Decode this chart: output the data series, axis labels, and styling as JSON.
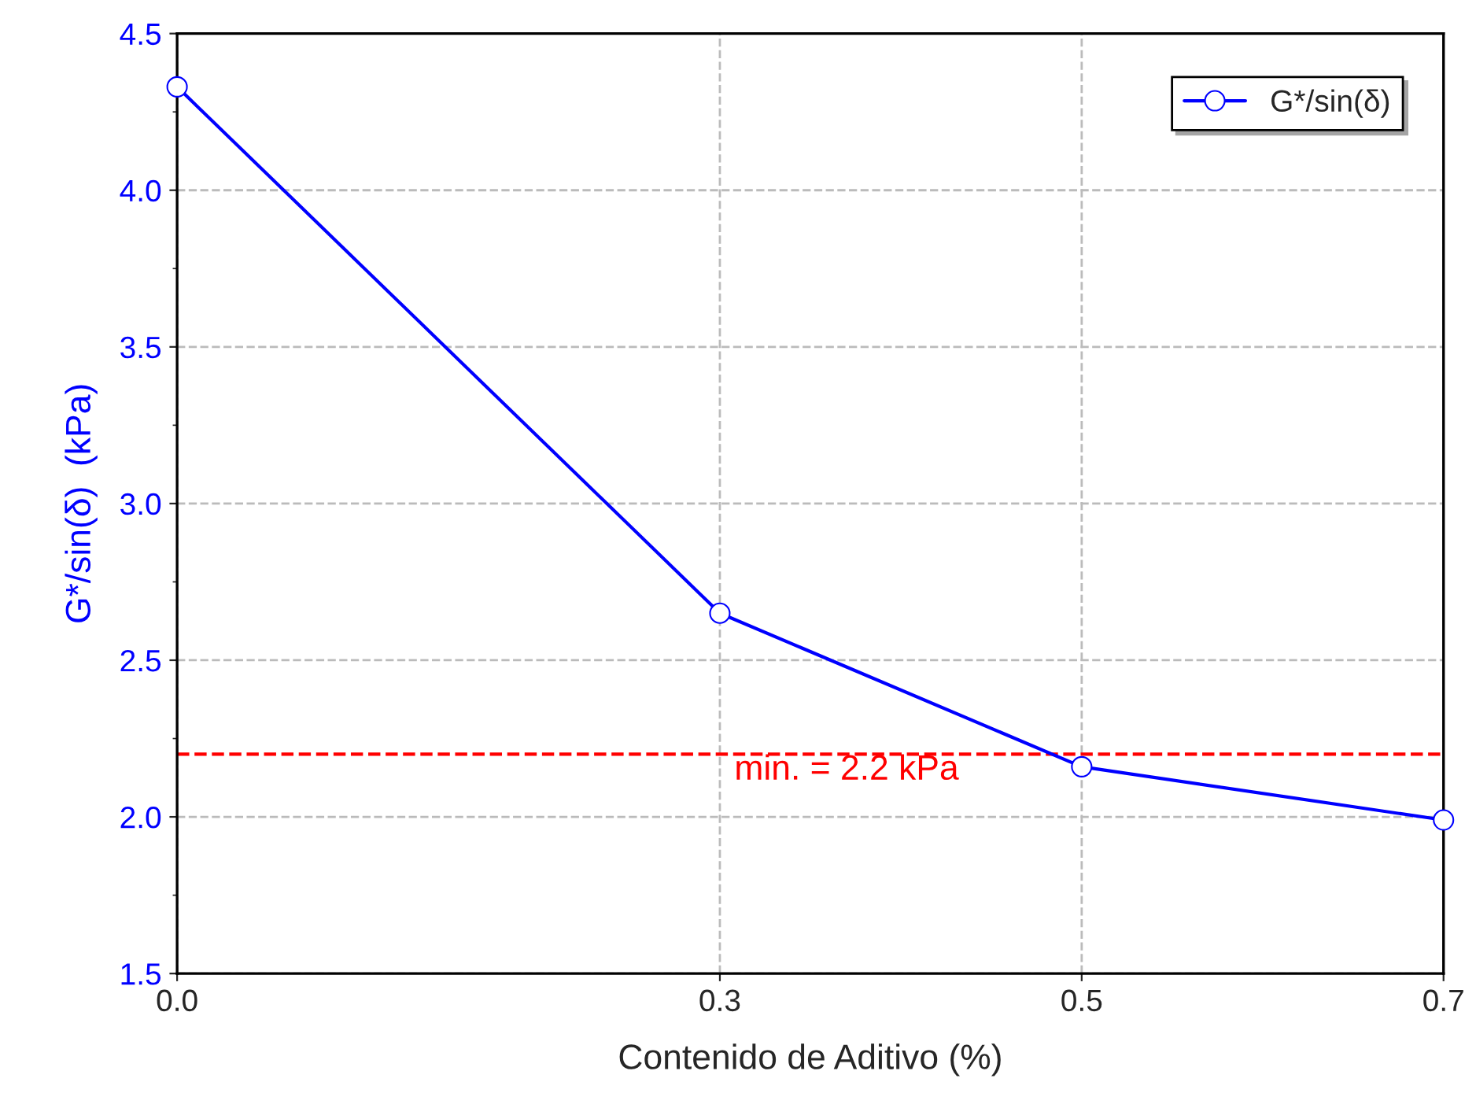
{
  "chart_data": {
    "type": "line",
    "xlabel": "Contenido de Aditivo (%)",
    "ylabel": "G*/sin(δ)  (kPa)",
    "x": [
      0.0,
      0.3,
      0.5,
      0.7
    ],
    "series": [
      {
        "name": "G*/sin(δ)",
        "color": "#0000ff",
        "values": [
          4.33,
          2.65,
          2.16,
          1.99
        ]
      }
    ],
    "xlim": [
      0.0,
      0.7
    ],
    "xticks": [
      {
        "value": 0.0,
        "label": "0.0"
      },
      {
        "value": 0.3,
        "label": "0.3"
      },
      {
        "value": 0.5,
        "label": "0.5"
      },
      {
        "value": 0.7,
        "label": "0.7"
      }
    ],
    "ylim": [
      1.5,
      4.5
    ],
    "yticks": [
      {
        "value": 1.5,
        "label": "1.5"
      },
      {
        "value": 2.0,
        "label": "2.0"
      },
      {
        "value": 2.5,
        "label": "2.5"
      },
      {
        "value": 3.0,
        "label": "3.0"
      },
      {
        "value": 3.5,
        "label": "3.5"
      },
      {
        "value": 4.0,
        "label": "4.0"
      },
      {
        "value": 4.5,
        "label": "4.5"
      }
    ],
    "ref_lines": [
      {
        "axis": "y",
        "value": 2.2,
        "label": "min. = 2.2 kPa",
        "color": "#ff0000",
        "line_style": "dashed"
      }
    ],
    "grid": true,
    "legend": "top right",
    "marker": "circle",
    "line_style": "solid"
  }
}
